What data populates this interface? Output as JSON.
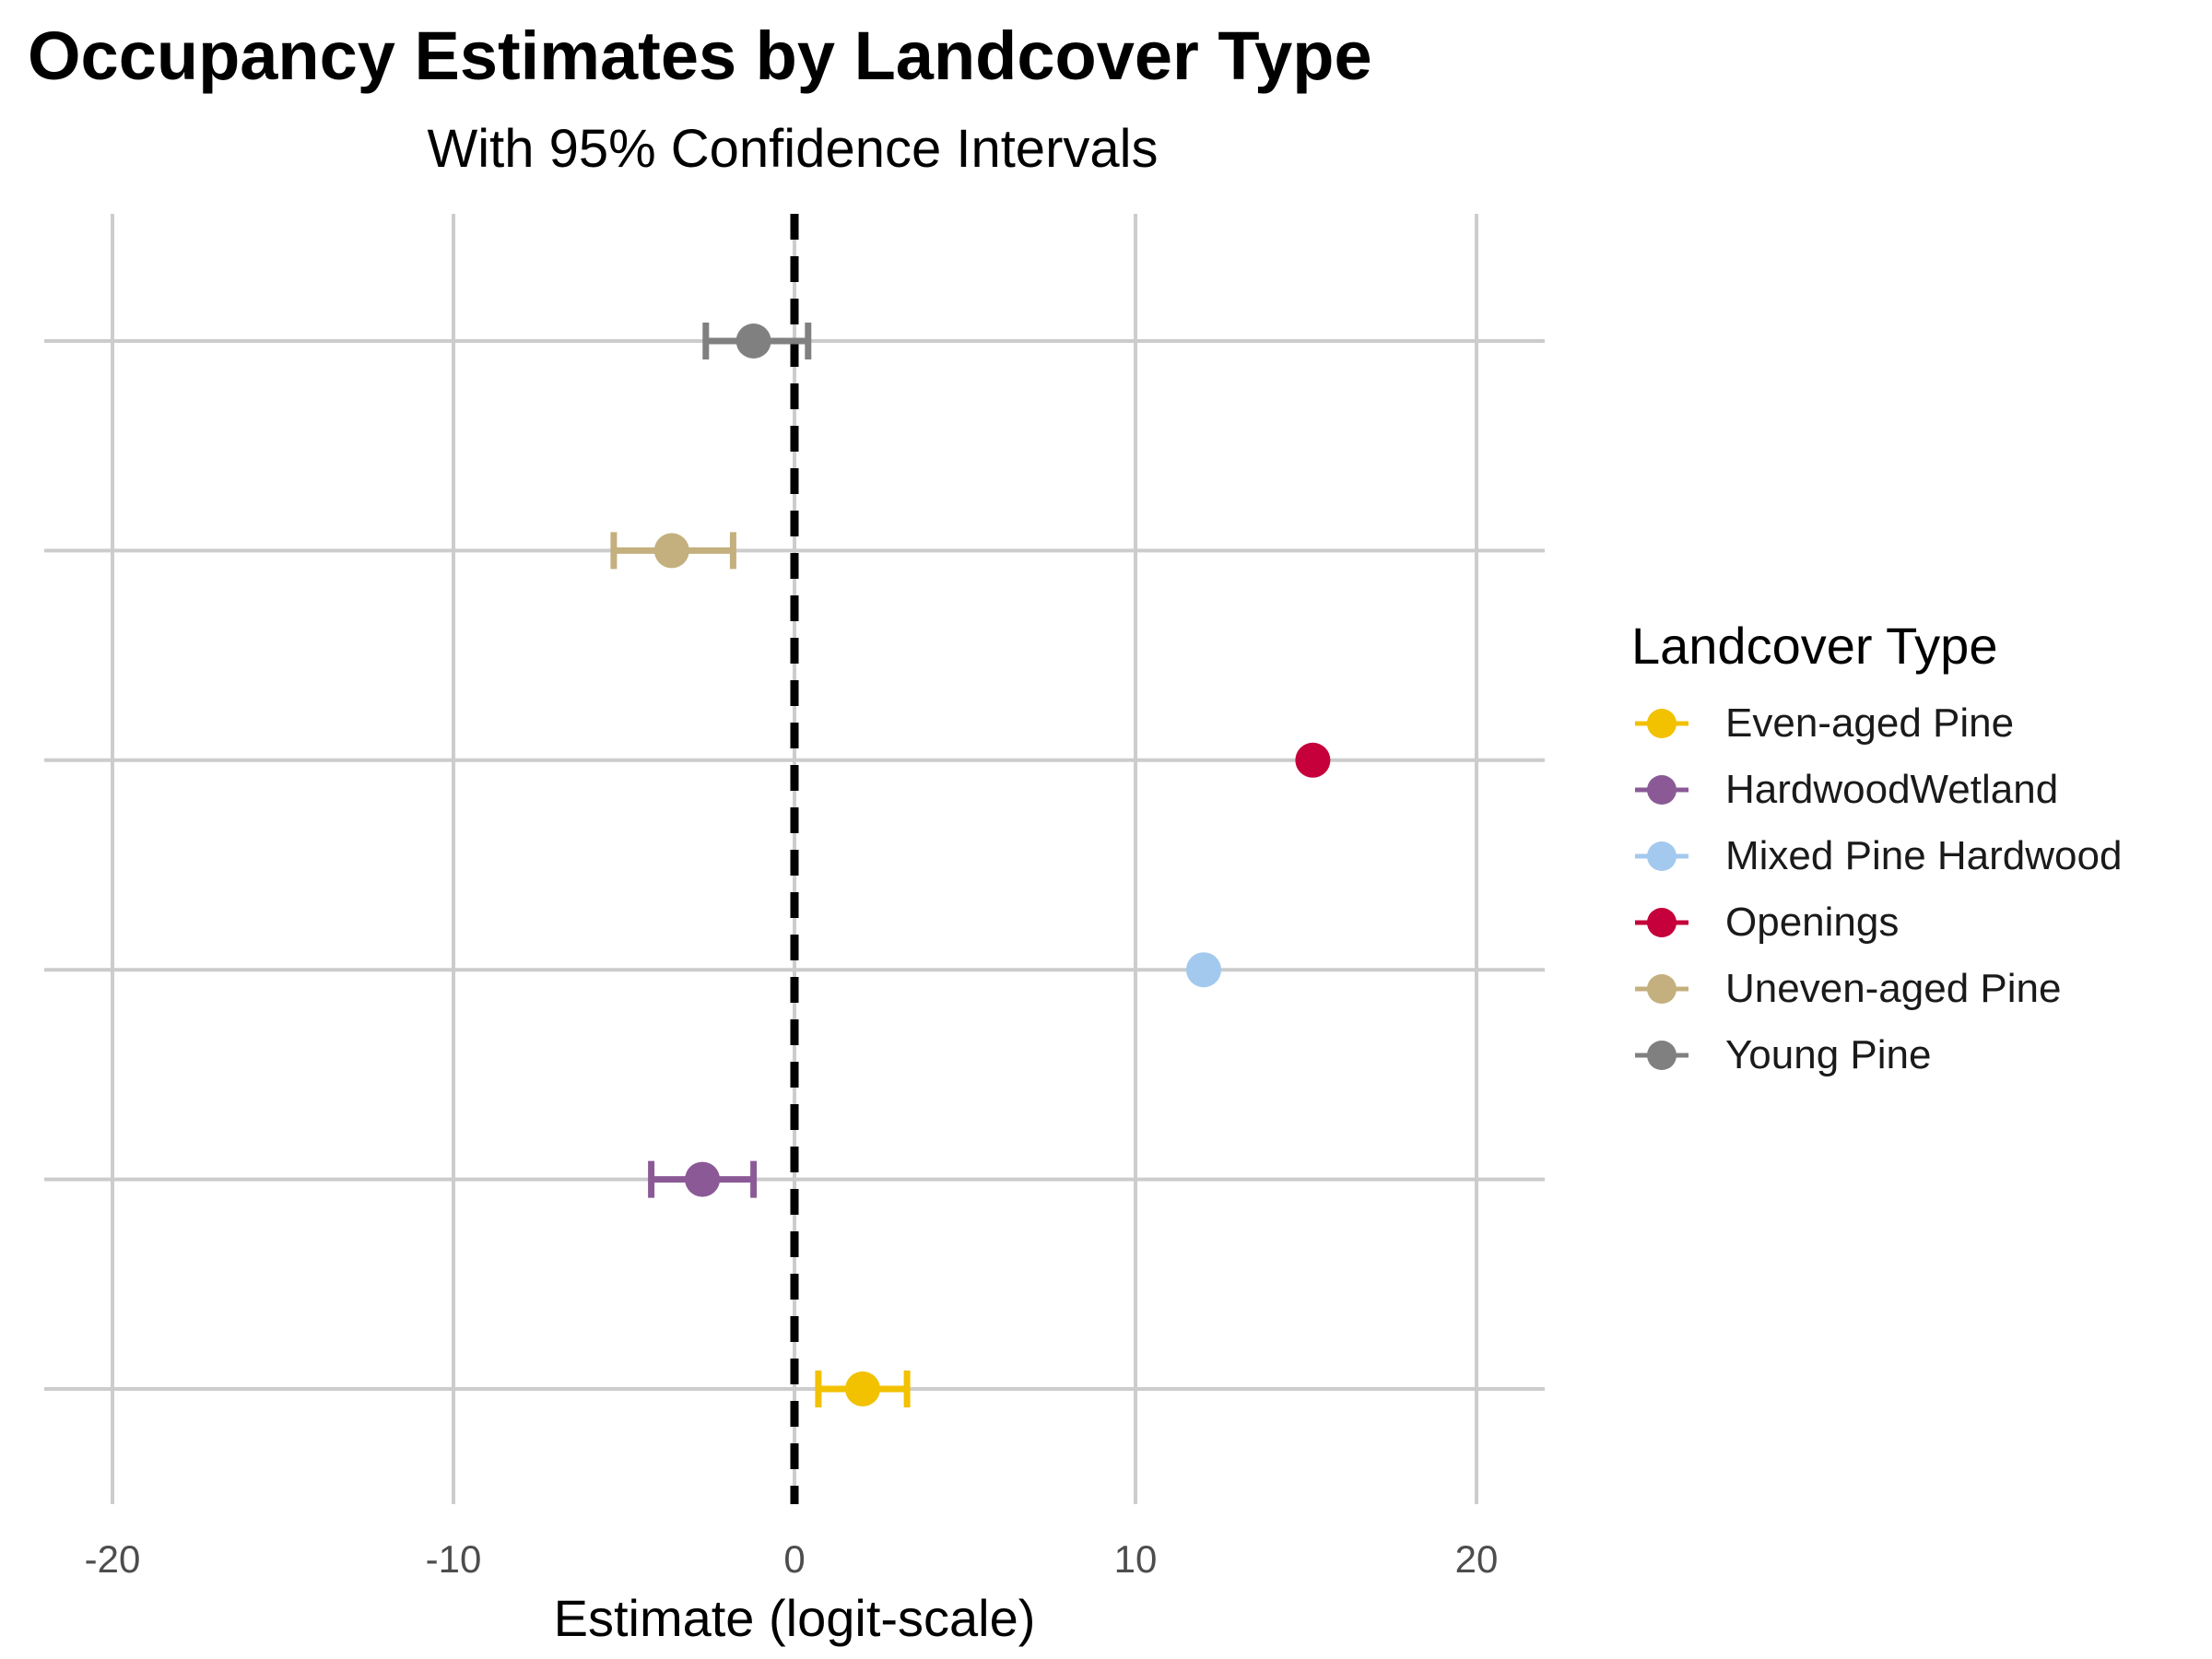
{
  "title": "Occupancy Estimates by Landcover Type",
  "subtitle": "With 95% Confidence Intervals",
  "legend": {
    "title": "Landcover Type",
    "items": [
      {
        "label": "Even-aged Pine",
        "color": "#F2C100"
      },
      {
        "label": "HardwoodWetland",
        "color": "#8B5A96"
      },
      {
        "label": "Mixed Pine Hardwood",
        "color": "#A3C9EE"
      },
      {
        "label": "Openings",
        "color": "#C5003A"
      },
      {
        "label": "Uneven-aged Pine",
        "color": "#C4B07E"
      },
      {
        "label": "Young Pine",
        "color": "#808080"
      }
    ]
  },
  "chart_data": {
    "type": "scatter",
    "title": "Occupancy Estimates by Landcover Type",
    "subtitle": "With 95% Confidence Intervals",
    "xlabel": "Estimate (logit-scale)",
    "ylabel": "",
    "xlim": [
      -22,
      22
    ],
    "x_ticks": [
      -20,
      -10,
      0,
      10,
      20
    ],
    "x_tick_labels": [
      "-20",
      "-10",
      "0",
      "10",
      "20"
    ],
    "reference_line": {
      "x": 0,
      "style": "dashed",
      "color": "#000000"
    },
    "grid": true,
    "y_axis_labels_shown": false,
    "legend_position": "right",
    "series": [
      {
        "name": "Even-aged Pine",
        "estimate": 2.0,
        "ci_low": 0.7,
        "ci_high": 3.3,
        "color": "#F2C100"
      },
      {
        "name": "HardwoodWetland",
        "estimate": -2.7,
        "ci_low": -4.2,
        "ci_high": -1.2,
        "color": "#8B5A96"
      },
      {
        "name": "Mixed Pine Hardwood",
        "estimate": 12.0,
        "ci_low": null,
        "ci_high": null,
        "color": "#A3C9EE"
      },
      {
        "name": "Openings",
        "estimate": 15.2,
        "ci_low": null,
        "ci_high": null,
        "color": "#C5003A"
      },
      {
        "name": "Uneven-aged Pine",
        "estimate": -3.6,
        "ci_low": -5.3,
        "ci_high": -1.8,
        "color": "#C4B07E"
      },
      {
        "name": "Young Pine",
        "estimate": -1.2,
        "ci_low": -2.6,
        "ci_high": 0.4,
        "color": "#808080"
      }
    ]
  }
}
